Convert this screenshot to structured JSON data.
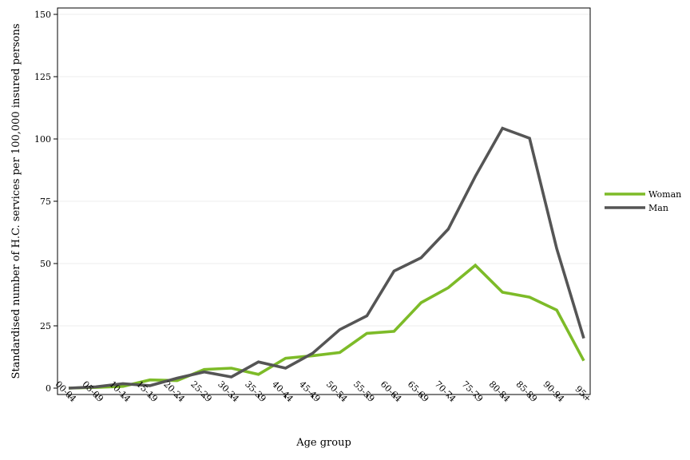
{
  "chart_data": {
    "type": "line",
    "title": "",
    "xlabel": "Age group",
    "ylabel": "Standardised number of H.C. services per 100,000 insured persons",
    "categories": [
      "00-04",
      "05-09",
      "10-14",
      "15-19",
      "20-24",
      "25-29",
      "30-34",
      "35-39",
      "40-44",
      "45-49",
      "50-54",
      "55-59",
      "60-64",
      "65-69",
      "70-74",
      "75-79",
      "80-84",
      "85-89",
      "90-94",
      "95+"
    ],
    "ylim": [
      0,
      150
    ],
    "yticks": [
      0,
      25,
      50,
      75,
      100,
      125,
      150
    ],
    "grid": true,
    "legend_position": "right",
    "series": [
      {
        "name": "Woman",
        "color": "#7dbb28",
        "values": [
          0,
          0.3,
          0.7,
          3.3,
          3,
          7.5,
          8,
          5.5,
          12,
          13,
          14.3,
          22,
          22.8,
          34.3,
          40.3,
          49.3,
          38.5,
          36.5,
          31.3,
          11
        ]
      },
      {
        "name": "Man",
        "color": "#555555",
        "values": [
          0,
          0.5,
          1.8,
          1,
          4,
          6.5,
          4.5,
          10.5,
          8,
          14,
          23.5,
          29,
          47,
          52.3,
          63.8,
          85,
          104.3,
          100.3,
          56,
          20
        ]
      }
    ]
  }
}
